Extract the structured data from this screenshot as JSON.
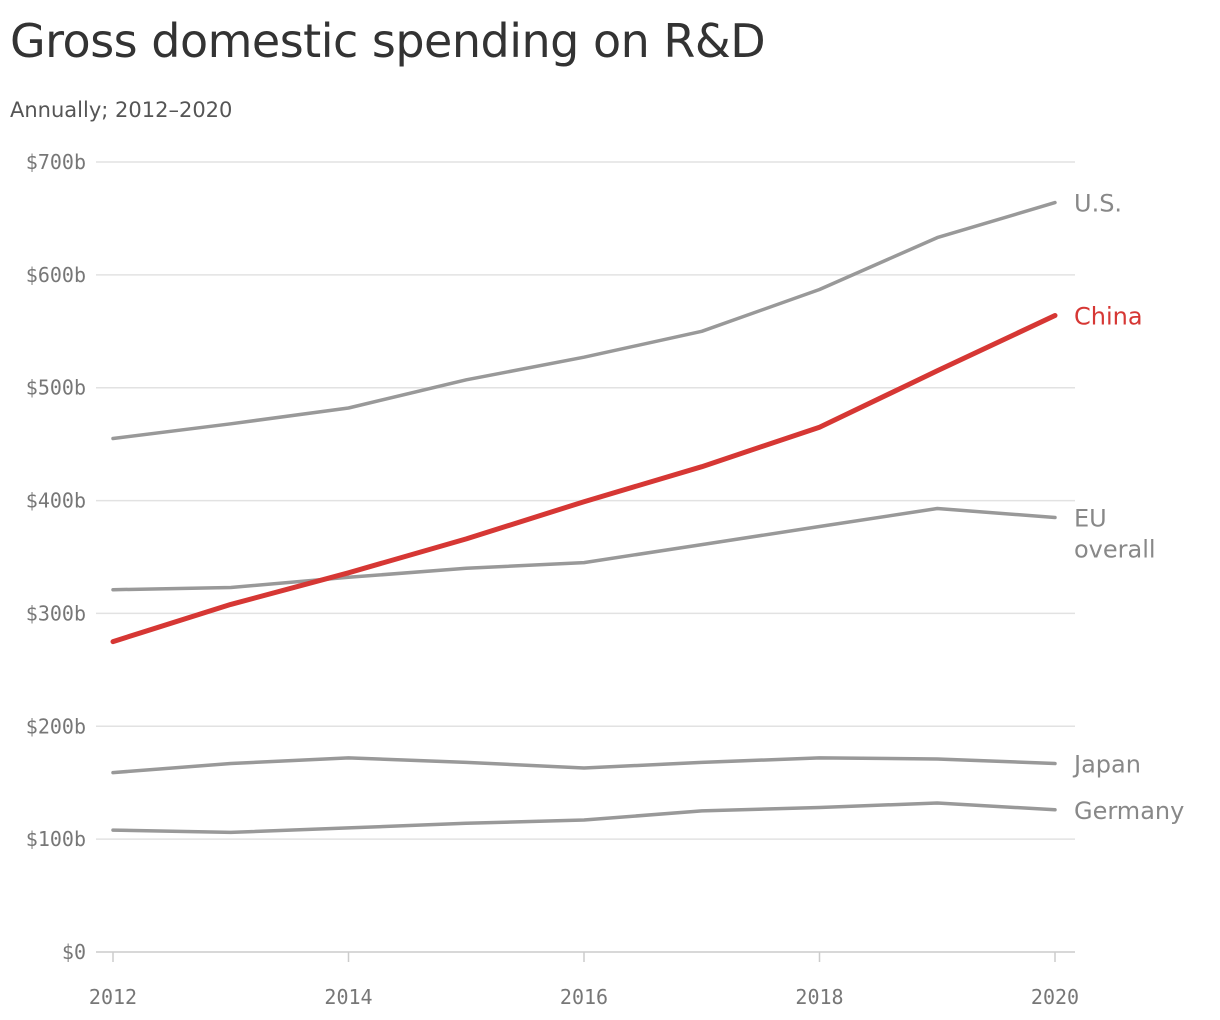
{
  "chart_data": {
    "type": "line",
    "title": "Gross domestic spending on R&D",
    "subtitle": "Annually; 2012–2020",
    "x": [
      2012,
      2013,
      2014,
      2015,
      2016,
      2017,
      2018,
      2019,
      2020
    ],
    "x_tick_labels": [
      "2012",
      "2014",
      "2016",
      "2018",
      "2020"
    ],
    "y_tick_labels": [
      "$0",
      "$100b",
      "$200b",
      "$300b",
      "$400b",
      "$500b",
      "$600b",
      "$700b"
    ],
    "ylim": [
      0,
      700
    ],
    "grid": true,
    "legend": "direct labels at line ends",
    "series": [
      {
        "name": "U.S.",
        "color": "#999999",
        "values": [
          455,
          468,
          482,
          507,
          527,
          550,
          587,
          633,
          664
        ]
      },
      {
        "name": "China",
        "color": "#d63734",
        "values": [
          275,
          308,
          336,
          366,
          399,
          430,
          465,
          515,
          564
        ]
      },
      {
        "name": "EU overall",
        "label_lines": [
          "EU",
          "overall"
        ],
        "color": "#999999",
        "values": [
          321,
          323,
          332,
          340,
          345,
          361,
          377,
          393,
          385
        ]
      },
      {
        "name": "Japan",
        "color": "#999999",
        "values": [
          159,
          167,
          172,
          168,
          163,
          168,
          172,
          171,
          167
        ]
      },
      {
        "name": "Germany",
        "color": "#999999",
        "values": [
          108,
          106,
          110,
          114,
          117,
          125,
          128,
          132,
          126
        ]
      }
    ]
  }
}
